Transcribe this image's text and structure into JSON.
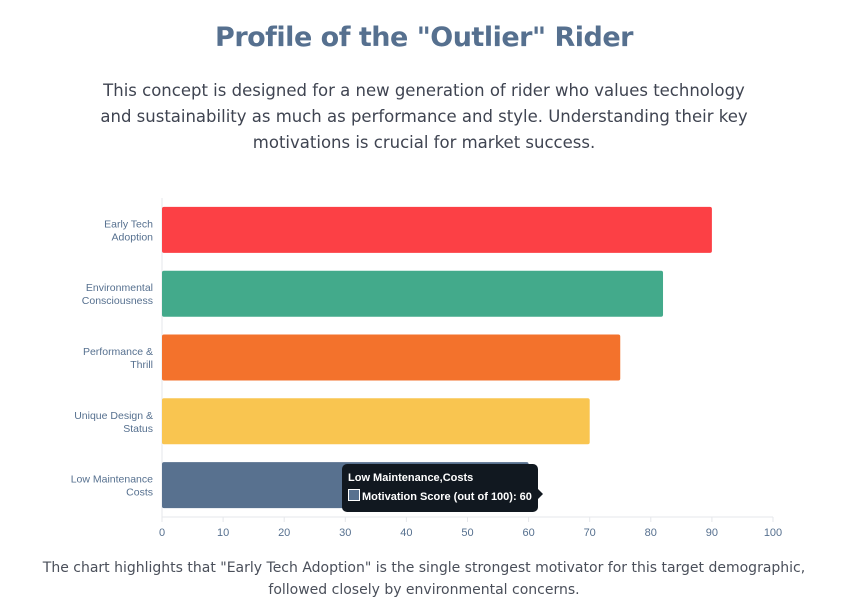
{
  "title": "Profile of the \"Outlier\" Rider",
  "intro": "This concept is designed for a new generation of rider who values technology and sustainability as much as performance and style. Understanding their key motivations is crucial for market success.",
  "caption": "The chart highlights that \"Early Tech Adoption\" is the single strongest motivator for this target demographic, followed closely by environmental concerns.",
  "chart_data": {
    "type": "bar",
    "orientation": "horizontal",
    "categories": [
      [
        "Early Tech",
        "Adoption"
      ],
      [
        "Environmental",
        "Consciousness"
      ],
      [
        "Performance &",
        "Thrill"
      ],
      [
        "Unique Design &",
        "Status"
      ],
      [
        "Low Maintenance",
        "Costs"
      ]
    ],
    "series": [
      {
        "name": "Motivation Score (out of 100)",
        "values": [
          90,
          82,
          75,
          70,
          60
        ]
      }
    ],
    "colors": [
      "#fc4045",
      "#43aa8b",
      "#f3722c",
      "#f9c550",
      "#58718f"
    ],
    "xlim": [
      0,
      100
    ],
    "xticks": [
      0,
      10,
      20,
      30,
      40,
      50,
      60,
      70,
      80,
      90,
      100
    ],
    "grid": false,
    "tooltip": {
      "title": "Low Maintenance,Costs",
      "label": "Motivation Score (out of 100): 60"
    }
  }
}
